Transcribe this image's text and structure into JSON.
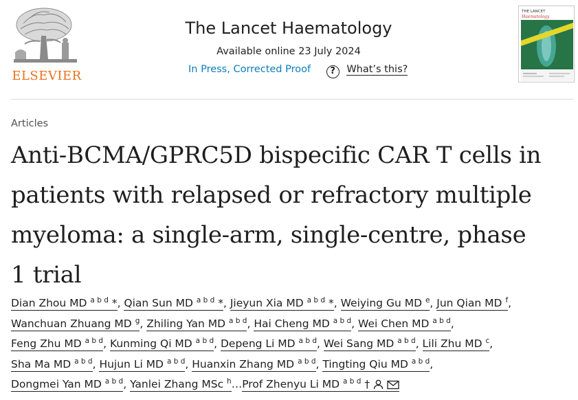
{
  "publisher": {
    "name": "ELSEVIER"
  },
  "journal": {
    "title": "The Lancet Haematology",
    "available": "Available online 23 July 2024",
    "status": "In Press, Corrected Proof",
    "help_label": "What’s this?",
    "help_icon": "question-circle-icon",
    "cover_line1": "THE LANCET",
    "cover_line2": "Haematology"
  },
  "article": {
    "section": "Articles",
    "title_lines": [
      "Anti-BCMA/GPRC5D bispecific CAR T cells in",
      "patients with relapsed or refractory multiple",
      "myeloma: a single-arm, single-centre, phase",
      "1 trial"
    ]
  },
  "authors": [
    {
      "name": "Dian Zhou MD",
      "sup": "a b d",
      "mark": " *"
    },
    {
      "name": "Qian Sun MD",
      "sup": "a b d",
      "mark": " *"
    },
    {
      "name": "Jieyun Xia MD",
      "sup": "a b d",
      "mark": " *"
    },
    {
      "name": "Weiying Gu MD",
      "sup": "e",
      "mark": ""
    },
    {
      "name": "Jun Qian MD",
      "sup": "f",
      "mark": ""
    },
    {
      "name": "Wanchuan Zhuang MD",
      "sup": "g",
      "mark": ""
    },
    {
      "name": "Zhiling Yan MD",
      "sup": "a b d",
      "mark": ""
    },
    {
      "name": "Hai Cheng MD",
      "sup": "a b d",
      "mark": ""
    },
    {
      "name": "Wei Chen MD",
      "sup": "a b d",
      "mark": ""
    },
    {
      "name": "Feng Zhu MD",
      "sup": "a b d",
      "mark": ""
    },
    {
      "name": "Kunming Qi MD",
      "sup": "a b d",
      "mark": ""
    },
    {
      "name": "Depeng Li MD",
      "sup": "a b d",
      "mark": ""
    },
    {
      "name": "Wei Sang MD",
      "sup": "a b d",
      "mark": ""
    },
    {
      "name": "Lili Zhu MD",
      "sup": "c",
      "mark": ""
    },
    {
      "name": "Sha Ma MD",
      "sup": "a b d",
      "mark": ""
    },
    {
      "name": "Hujun Li MD",
      "sup": "a b d",
      "mark": ""
    },
    {
      "name": "Huanxin Zhang MD",
      "sup": "a b d",
      "mark": ""
    },
    {
      "name": "Tingting Qiu MD",
      "sup": "a b d",
      "mark": ""
    },
    {
      "name": "Dongmei Yan MD",
      "sup": "a b d",
      "mark": ""
    },
    {
      "name": "Yanlei Zhang MSc",
      "sup": "h",
      "mark": ""
    }
  ],
  "authors_ellipsis": "…",
  "last_author": {
    "name": "Prof Zhenyu Li MD",
    "sup": "a b d",
    "mark": " †",
    "icons": [
      "person-icon",
      "envelope-icon"
    ]
  },
  "colors": {
    "accent_link": "#0c7dbb",
    "elsevier_orange": "#e9711c"
  }
}
